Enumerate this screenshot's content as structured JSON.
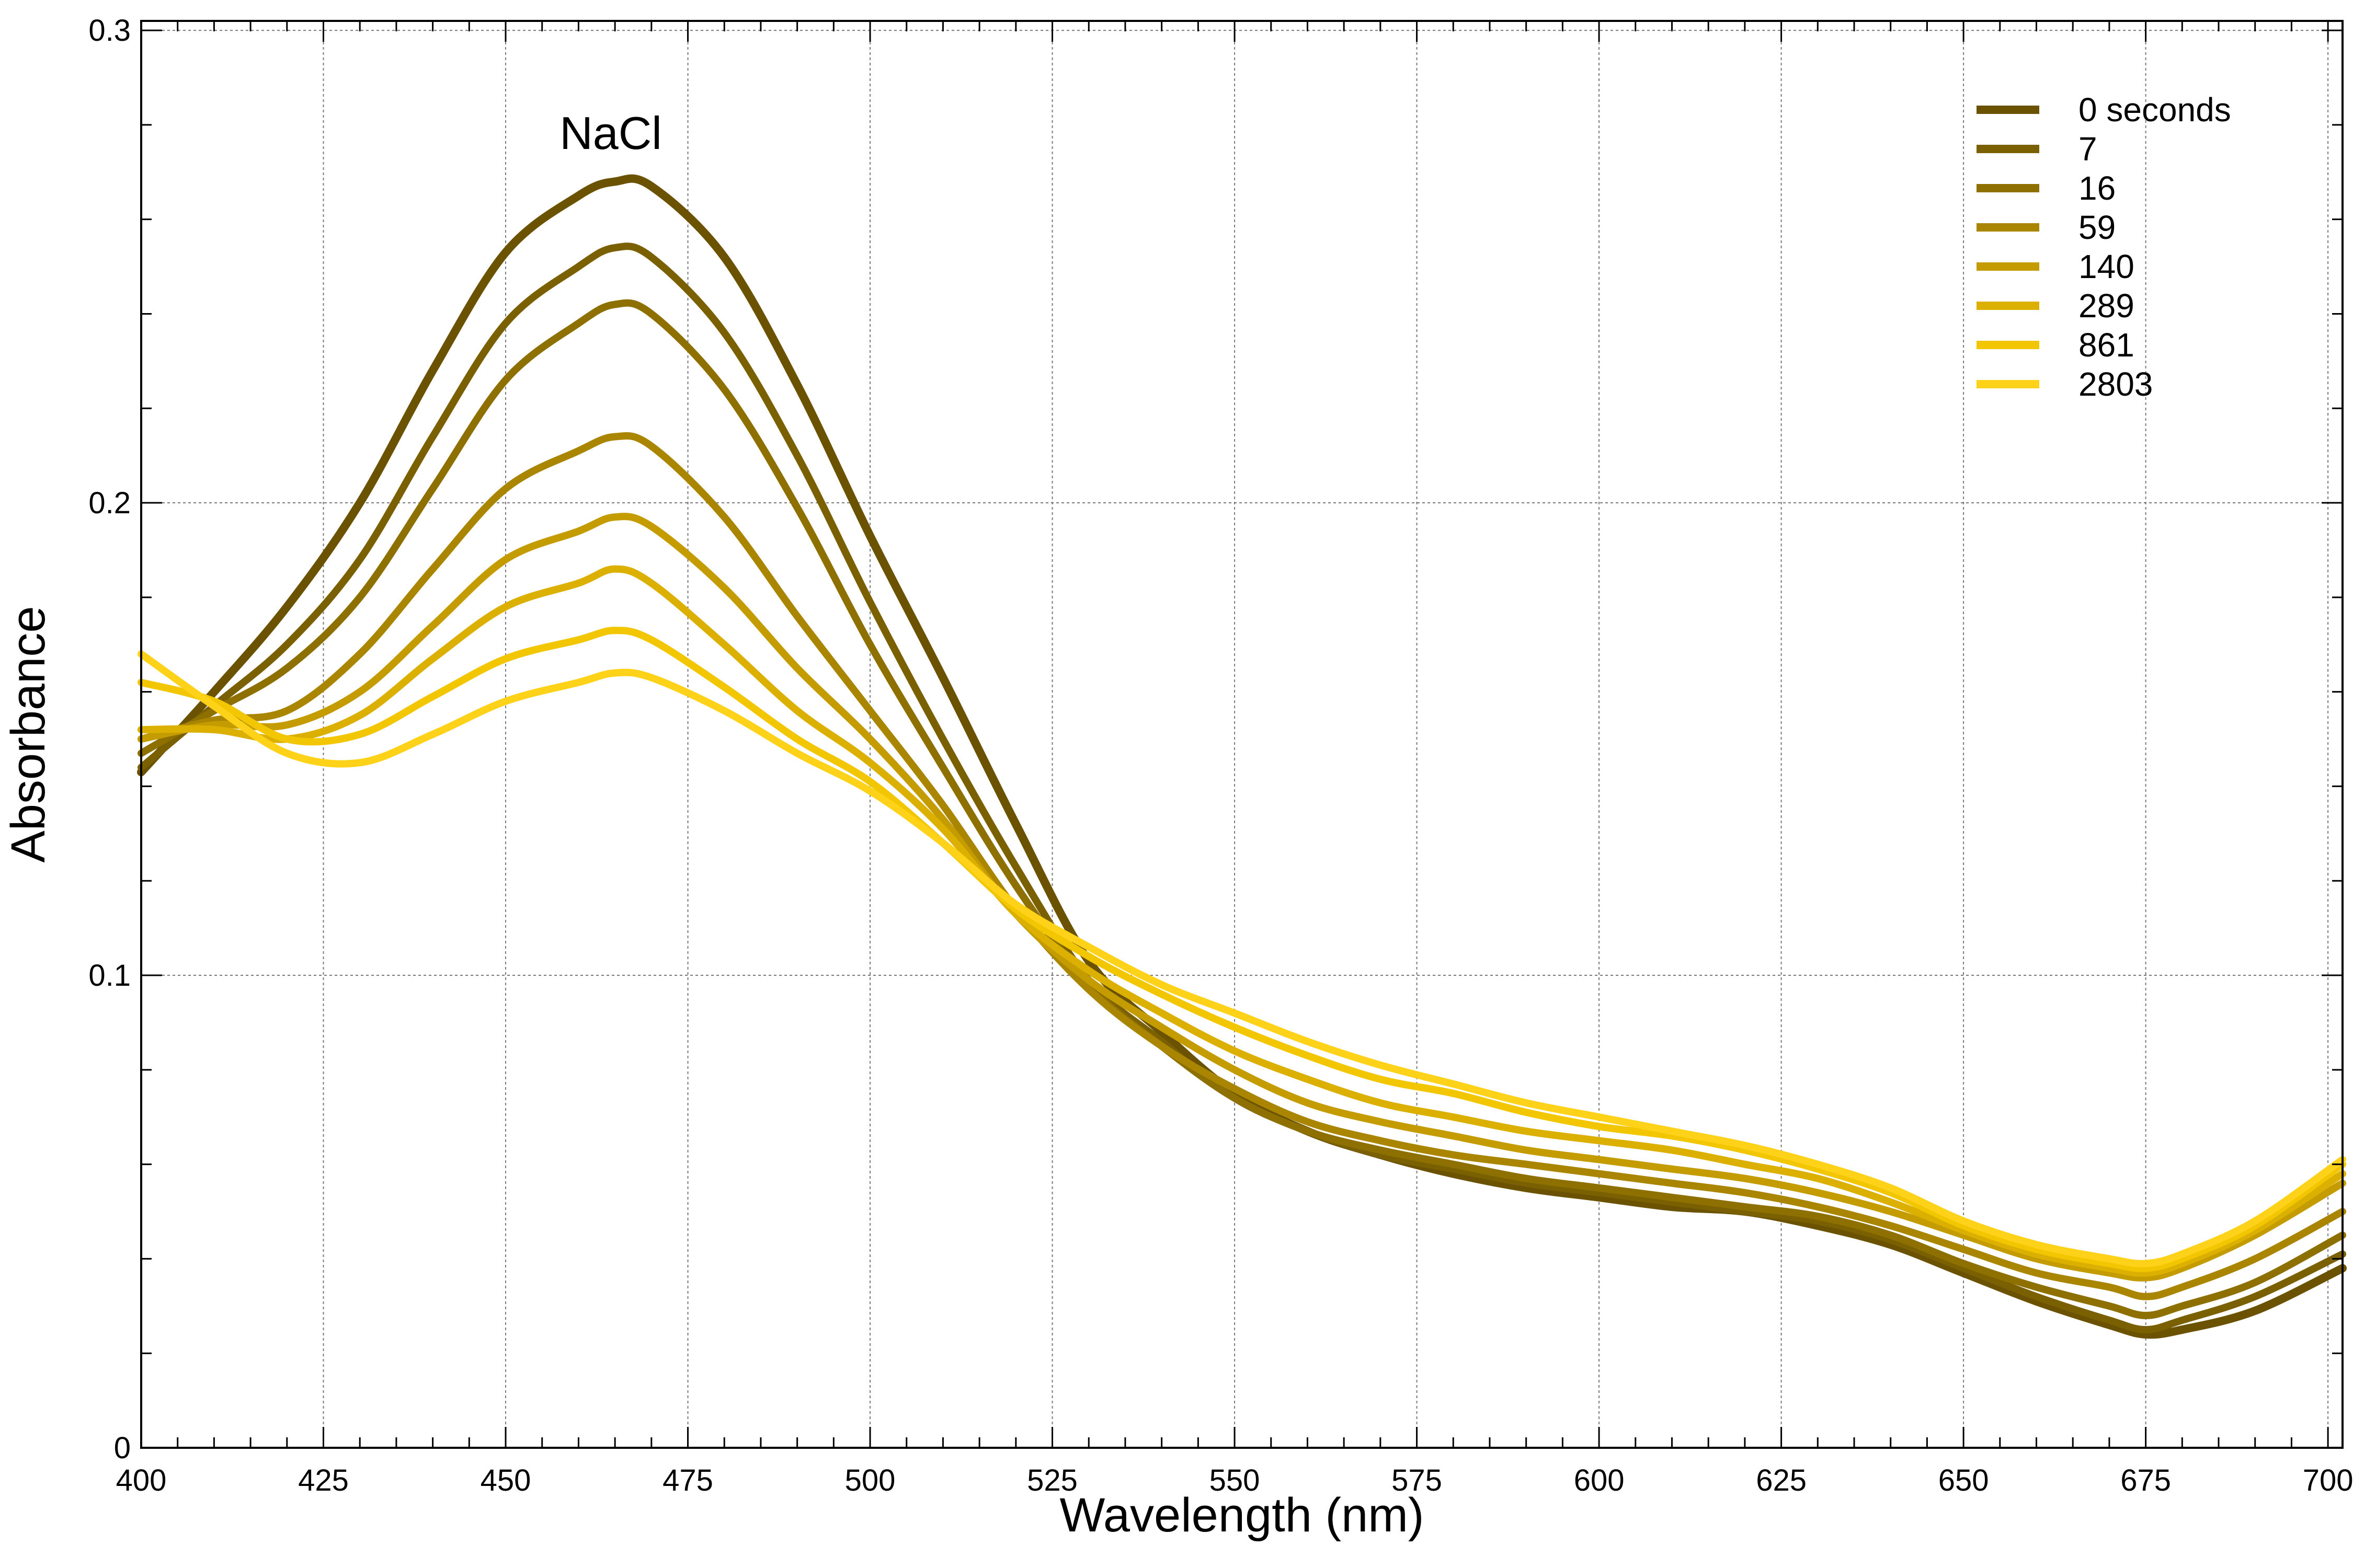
{
  "chart_data": {
    "type": "line",
    "title": "",
    "annotation": "NaCl",
    "xlabel": "Wavelength (nm)",
    "ylabel": "Absorbance",
    "xlim": [
      400,
      702
    ],
    "ylim": [
      0,
      0.302
    ],
    "x_ticks": [
      400,
      425,
      450,
      475,
      500,
      525,
      550,
      575,
      600,
      625,
      650,
      675,
      700
    ],
    "x_tick_labels": [
      "400",
      "425",
      "450",
      "475",
      "500",
      "525",
      "550",
      "575",
      "600",
      "625",
      "650",
      "675",
      "700"
    ],
    "y_ticks": [
      0,
      0.1,
      0.2,
      0.3
    ],
    "y_tick_labels": [
      "0",
      "0.1",
      "0.2",
      "0.3"
    ],
    "grid": true,
    "legend_position": "top-right",
    "x": [
      400,
      410,
      420,
      430,
      440,
      450,
      460,
      465,
      470,
      480,
      490,
      500,
      510,
      520,
      530,
      540,
      550,
      560,
      570,
      580,
      590,
      600,
      610,
      620,
      630,
      640,
      650,
      660,
      670,
      675,
      680,
      690,
      702
    ],
    "series": [
      {
        "name": "0 seconds",
        "color": "#6b5200",
        "values": [
          0.143,
          0.16,
          0.178,
          0.2,
          0.228,
          0.253,
          0.265,
          0.268,
          0.267,
          0.252,
          0.225,
          0.193,
          0.163,
          0.132,
          0.103,
          0.088,
          0.075,
          0.067,
          0.062,
          0.058,
          0.055,
          0.053,
          0.051,
          0.05,
          0.047,
          0.043,
          0.037,
          0.031,
          0.026,
          0.024,
          0.025,
          0.029,
          0.038
        ]
      },
      {
        "name": "7",
        "color": "#7a6000",
        "values": [
          0.144,
          0.157,
          0.17,
          0.188,
          0.214,
          0.238,
          0.25,
          0.254,
          0.252,
          0.236,
          0.21,
          0.179,
          0.15,
          0.123,
          0.099,
          0.086,
          0.074,
          0.067,
          0.062,
          0.059,
          0.056,
          0.054,
          0.052,
          0.05,
          0.048,
          0.044,
          0.038,
          0.032,
          0.027,
          0.025,
          0.027,
          0.032,
          0.041
        ]
      },
      {
        "name": "16",
        "color": "#8e7000",
        "values": [
          0.147,
          0.156,
          0.165,
          0.18,
          0.203,
          0.226,
          0.238,
          0.242,
          0.24,
          0.224,
          0.199,
          0.17,
          0.144,
          0.119,
          0.098,
          0.085,
          0.074,
          0.067,
          0.063,
          0.06,
          0.057,
          0.055,
          0.053,
          0.051,
          0.049,
          0.045,
          0.039,
          0.034,
          0.03,
          0.028,
          0.03,
          0.035,
          0.045
        ]
      },
      {
        "name": "59",
        "color": "#a98500",
        "values": [
          0.15,
          0.154,
          0.156,
          0.168,
          0.186,
          0.203,
          0.211,
          0.214,
          0.212,
          0.197,
          0.176,
          0.156,
          0.136,
          0.114,
          0.097,
          0.085,
          0.076,
          0.069,
          0.065,
          0.062,
          0.06,
          0.058,
          0.056,
          0.054,
          0.051,
          0.047,
          0.042,
          0.037,
          0.034,
          0.032,
          0.034,
          0.04,
          0.05
        ]
      },
      {
        "name": "140",
        "color": "#c49c00",
        "values": [
          0.15,
          0.153,
          0.153,
          0.16,
          0.174,
          0.188,
          0.194,
          0.197,
          0.195,
          0.182,
          0.165,
          0.15,
          0.133,
          0.113,
          0.099,
          0.089,
          0.08,
          0.073,
          0.069,
          0.066,
          0.063,
          0.061,
          0.059,
          0.057,
          0.054,
          0.05,
          0.045,
          0.04,
          0.037,
          0.036,
          0.038,
          0.045,
          0.056
        ]
      },
      {
        "name": "289",
        "color": "#dcb000",
        "values": [
          0.152,
          0.152,
          0.15,
          0.155,
          0.167,
          0.178,
          0.183,
          0.186,
          0.183,
          0.17,
          0.156,
          0.145,
          0.131,
          0.113,
          0.101,
          0.092,
          0.084,
          0.078,
          0.073,
          0.07,
          0.067,
          0.065,
          0.063,
          0.06,
          0.057,
          0.052,
          0.046,
          0.041,
          0.038,
          0.037,
          0.039,
          0.046,
          0.058
        ]
      },
      {
        "name": "861",
        "color": "#f2c600",
        "values": [
          0.162,
          0.158,
          0.15,
          0.151,
          0.159,
          0.167,
          0.171,
          0.173,
          0.171,
          0.161,
          0.15,
          0.141,
          0.128,
          0.114,
          0.104,
          0.096,
          0.089,
          0.083,
          0.078,
          0.075,
          0.071,
          0.068,
          0.066,
          0.063,
          0.059,
          0.054,
          0.047,
          0.042,
          0.039,
          0.038,
          0.04,
          0.047,
          0.06
        ]
      },
      {
        "name": "2803",
        "color": "#ffd21a",
        "values": [
          0.168,
          0.157,
          0.147,
          0.145,
          0.151,
          0.158,
          0.162,
          0.164,
          0.163,
          0.156,
          0.147,
          0.139,
          0.128,
          0.115,
          0.106,
          0.098,
          0.092,
          0.086,
          0.081,
          0.077,
          0.073,
          0.07,
          0.067,
          0.064,
          0.06,
          0.055,
          0.048,
          0.043,
          0.04,
          0.039,
          0.041,
          0.048,
          0.061
        ]
      }
    ]
  }
}
